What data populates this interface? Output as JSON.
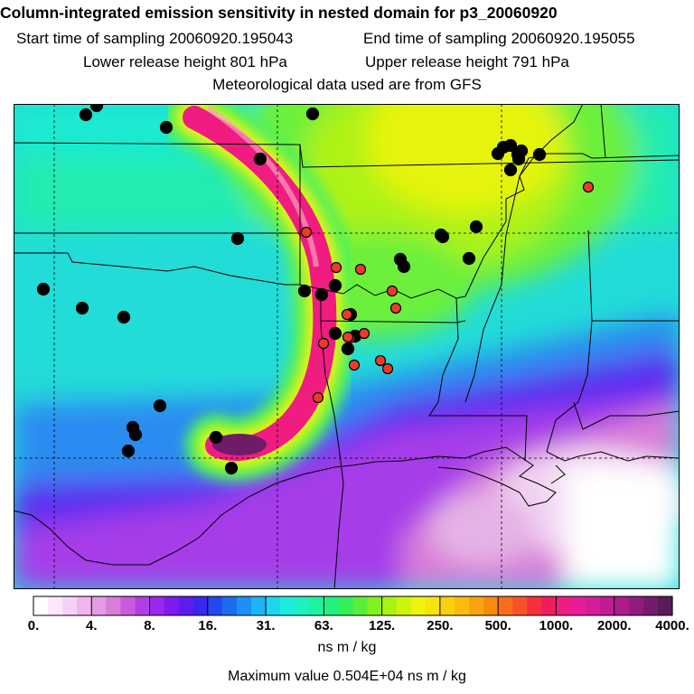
{
  "title": "Column-integrated emission sensitivity in nested domain for p3_20060920",
  "sampling": {
    "start": "Start time of sampling 20060920.195043",
    "end": "End time of sampling 20060920.195055"
  },
  "release": {
    "lower": "Lower release height  801 hPa",
    "upper": "Upper release height  791 hPa"
  },
  "met": "Meteorological data used are from GFS",
  "colorbar": {
    "colors": [
      "#ffffff",
      "#fbe6fb",
      "#f6d1f6",
      "#efb5ef",
      "#e59ae5",
      "#d87dd8",
      "#c95cde",
      "#b33ee6",
      "#9a28ec",
      "#7e1cf0",
      "#5c1cf0",
      "#3a26ec",
      "#2348f0",
      "#1c6cf2",
      "#1c90f4",
      "#1cb4f4",
      "#1cd6f0",
      "#1cecdc",
      "#1cf2c0",
      "#1ef2a0",
      "#22f07e",
      "#34ee5a",
      "#58ee3a",
      "#82f01e",
      "#aaf214",
      "#cef40c",
      "#eef40c",
      "#f6e40c",
      "#f8d00c",
      "#f8bc0c",
      "#f8a40c",
      "#f88a0c",
      "#f86e1a",
      "#f8522a",
      "#f6303c",
      "#f21c5c",
      "#f01c80",
      "#e81c98",
      "#d61c9a",
      "#c21c94",
      "#ac1c8c",
      "#901c7e",
      "#741c6c",
      "#581c58"
    ],
    "ticks": [
      "0.",
      "4.",
      "8.",
      "16.",
      "31.",
      "63.",
      "125.",
      "250.",
      "500.",
      "1000.",
      "2000.",
      "4000."
    ],
    "units": "ns m / kg"
  },
  "max_value": "Maximum value  0.504E+04 ns m / kg",
  "stations": {
    "black": [
      [
        95,
        127
      ],
      [
        107,
        117
      ],
      [
        184,
        141
      ],
      [
        346,
        126
      ],
      [
        288,
        176
      ],
      [
        263,
        264
      ],
      [
        48,
        320
      ],
      [
        91,
        341
      ],
      [
        137,
        351
      ],
      [
        177,
        449
      ],
      [
        147,
        473
      ],
      [
        150,
        481
      ],
      [
        142,
        499
      ],
      [
        239,
        484
      ],
      [
        256,
        518
      ],
      [
        337,
        322
      ],
      [
        356,
        326
      ],
      [
        371,
        316
      ],
      [
        371,
        369
      ],
      [
        388,
        348
      ],
      [
        385,
        386
      ],
      [
        393,
        372
      ],
      [
        443,
        287
      ],
      [
        447,
        295
      ],
      [
        488,
        260
      ],
      [
        490,
        262
      ],
      [
        527,
        251
      ],
      [
        519,
        286
      ],
      [
        557,
        163
      ],
      [
        565,
        161
      ],
      [
        551,
        170
      ],
      [
        573,
        171
      ],
      [
        577,
        167
      ],
      [
        565,
        188
      ],
      [
        597,
        171
      ],
      [
        574,
        176
      ]
    ],
    "red": [
      [
        651,
        207
      ],
      [
        339,
        257
      ],
      [
        372,
        296
      ],
      [
        399,
        298
      ],
      [
        434,
        322
      ],
      [
        438,
        341
      ],
      [
        384,
        348
      ],
      [
        387,
        374
      ],
      [
        403,
        369
      ],
      [
        358,
        380
      ],
      [
        392,
        404
      ],
      [
        421,
        399
      ],
      [
        429,
        408
      ],
      [
        352,
        440
      ],
      [
        385,
        373
      ]
    ]
  }
}
